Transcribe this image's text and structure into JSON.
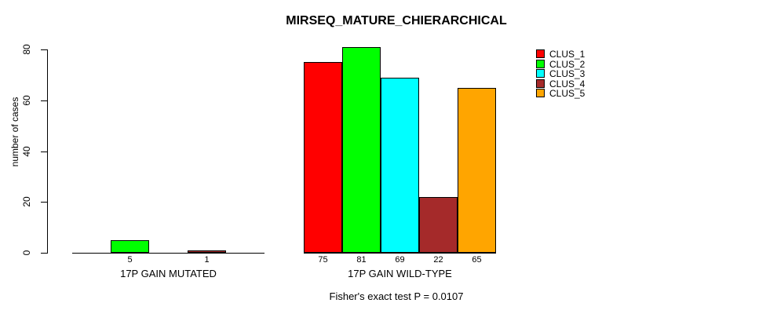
{
  "chart_data": {
    "type": "bar",
    "title": "MIRSEQ_MATURE_CHIERARCHICAL",
    "ylabel": "number of cases",
    "xlabel": "",
    "ylim": [
      0,
      80
    ],
    "yticks": [
      0,
      20,
      40,
      60,
      80
    ],
    "categories": [
      "17P GAIN MUTATED",
      "17P GAIN WILD-TYPE"
    ],
    "series": [
      {
        "name": "CLUS_1",
        "color": "#ff0000",
        "values": [
          0,
          75
        ]
      },
      {
        "name": "CLUS_2",
        "color": "#00ff00",
        "values": [
          5,
          81
        ]
      },
      {
        "name": "CLUS_3",
        "color": "#00ffff",
        "values": [
          0,
          69
        ]
      },
      {
        "name": "CLUS_4",
        "color": "#a52a2a",
        "values": [
          1,
          22
        ]
      },
      {
        "name": "CLUS_5",
        "color": "#ffa500",
        "values": [
          0,
          65
        ]
      }
    ],
    "bar_labels": [
      [
        "",
        "5",
        "",
        "1",
        ""
      ],
      [
        "75",
        "81",
        "69",
        "22",
        "65"
      ]
    ],
    "legend": {
      "position": "top-right",
      "entries": [
        "CLUS_1",
        "CLUS_2",
        "CLUS_3",
        "CLUS_4",
        "CLUS_5"
      ]
    },
    "annotation": "Fisher's exact test P = 0.0107",
    "grid": false,
    "background": "#ffffff"
  }
}
